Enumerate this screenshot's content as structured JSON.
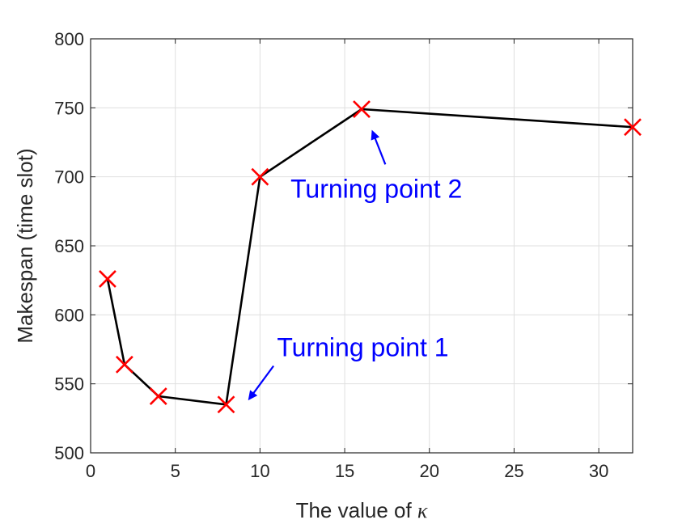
{
  "chart_data": {
    "type": "line",
    "xlabel": "The value of ",
    "xlabel_symbol": "κ",
    "ylabel": "Makespan (time slot)",
    "xlim": [
      0,
      32
    ],
    "ylim": [
      500,
      800
    ],
    "xticks": [
      0,
      5,
      10,
      15,
      20,
      25,
      30
    ],
    "yticks": [
      500,
      550,
      600,
      650,
      700,
      750,
      800
    ],
    "grid": true,
    "series": [
      {
        "x": [
          1,
          2,
          4,
          8,
          10,
          16,
          32
        ],
        "y": [
          626,
          564,
          541,
          535,
          700,
          749,
          736
        ],
        "line_color": "#000000",
        "marker": "x",
        "marker_color": "#ff0000"
      }
    ],
    "annotations": [
      {
        "text": "Turning point 1",
        "x": 11,
        "y": 570,
        "arrow_from": [
          10.8,
          563
        ],
        "arrow_to": [
          9.3,
          538
        ],
        "color": "#0000ff"
      },
      {
        "text": "Turning point 2",
        "x": 11.8,
        "y": 685,
        "arrow_from": [
          17.4,
          709
        ],
        "arrow_to": [
          16.6,
          734
        ],
        "color": "#0000ff"
      }
    ]
  }
}
